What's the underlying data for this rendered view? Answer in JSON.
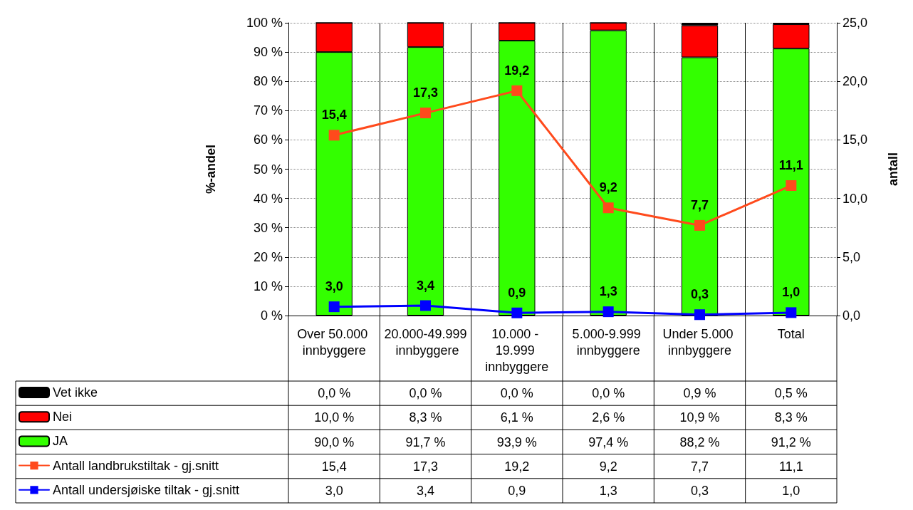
{
  "chart_data": {
    "type": "bar",
    "stacked": true,
    "ylabel": "%-andel",
    "y2label": "antall",
    "categories": [
      "Over 50.000 innbyggere",
      "20.000-49.999 innbyggere",
      "10.000 - 19.999 innbyggere",
      "5.000-9.999 innbyggere",
      "Under 5.000 innbyggere",
      "Total"
    ],
    "series": [
      {
        "name": "JA",
        "color": "#33ff00",
        "values": [
          90.0,
          91.7,
          93.9,
          97.4,
          88.2,
          91.2
        ],
        "value_labels": [
          "90,0 %",
          "91,7 %",
          "93,9 %",
          "97,4 %",
          "88,2 %",
          "91,2 %"
        ]
      },
      {
        "name": "Nei",
        "color": "#ff0000",
        "values": [
          10.0,
          8.3,
          6.1,
          2.6,
          10.9,
          8.3
        ],
        "value_labels": [
          "10,0 %",
          "8,3 %",
          "6,1 %",
          "2,6 %",
          "10,9 %",
          "8,3 %"
        ]
      },
      {
        "name": "Vet ikke",
        "color": "#000000",
        "values": [
          0.0,
          0.0,
          0.0,
          0.0,
          0.9,
          0.5
        ],
        "value_labels": [
          "0,0 %",
          "0,0 %",
          "0,0 %",
          "0,0 %",
          "0,9 %",
          "0,5 %"
        ]
      },
      {
        "name": "Antall landbrukstiltak - gj.snitt",
        "type": "line",
        "axis": "y2",
        "color": "#ff4a1c",
        "values": [
          15.4,
          17.3,
          19.2,
          9.2,
          7.7,
          11.1
        ],
        "value_labels": [
          "15,4",
          "17,3",
          "19,2",
          "9,2",
          "7,7",
          "11,1"
        ]
      },
      {
        "name": "Antall undersjøiske tiltak - gj.snitt",
        "type": "line",
        "axis": "y",
        "color": "#0000ff",
        "values": [
          3.0,
          3.4,
          0.9,
          1.3,
          0.3,
          1.0
        ],
        "value_labels": [
          "3,0",
          "3,4",
          "0,9",
          "1,3",
          "0,3",
          "1,0"
        ]
      }
    ],
    "ylim": [
      0,
      100
    ],
    "yticks": [
      {
        "value": 0,
        "label": "0 %"
      },
      {
        "value": 10,
        "label": "10 %"
      },
      {
        "value": 20,
        "label": "20 %"
      },
      {
        "value": 30,
        "label": "30 %"
      },
      {
        "value": 40,
        "label": "40 %"
      },
      {
        "value": 50,
        "label": "50 %"
      },
      {
        "value": 60,
        "label": "60 %"
      },
      {
        "value": 70,
        "label": "70 %"
      },
      {
        "value": 80,
        "label": "80 %"
      },
      {
        "value": 90,
        "label": "90 %"
      },
      {
        "value": 100,
        "label": "100 %"
      }
    ],
    "y2lim": [
      0,
      25
    ],
    "y2ticks": [
      {
        "value": 0,
        "label": "0,0"
      },
      {
        "value": 5,
        "label": "5,0"
      },
      {
        "value": 10,
        "label": "10,0"
      },
      {
        "value": 15,
        "label": "15,0"
      },
      {
        "value": 20,
        "label": "20,0"
      },
      {
        "value": 25,
        "label": "25,0"
      }
    ],
    "grid": true,
    "legend": "bottom left",
    "marker": "square",
    "line_style": "solid"
  }
}
